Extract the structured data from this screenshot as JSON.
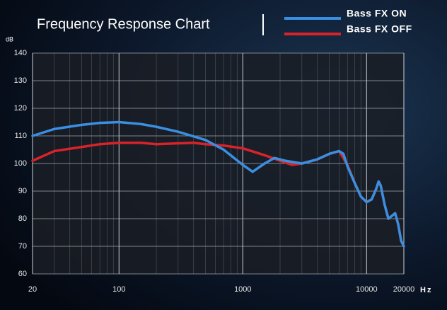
{
  "chart_data": {
    "type": "line",
    "title": "Frequency Response Chart",
    "y_label": "dB",
    "x_label": "Hz",
    "log_x": true,
    "grid": true,
    "legend": "top-right",
    "xlim": [
      20,
      20000
    ],
    "ylim": [
      60,
      140
    ],
    "xticks": [
      20,
      100,
      1000,
      10000,
      20000
    ],
    "xminorticks": [
      30,
      40,
      50,
      60,
      70,
      80,
      90,
      200,
      300,
      400,
      500,
      600,
      700,
      800,
      900,
      2000,
      3000,
      4000,
      5000,
      6000,
      7000,
      8000,
      9000
    ],
    "yticks": [
      60,
      70,
      80,
      90,
      100,
      110,
      120,
      130,
      140
    ],
    "series": [
      {
        "name": "Bass FX ON",
        "color": "#3a8fe0",
        "x": [
          20,
          30,
          50,
          70,
          100,
          150,
          200,
          300,
          500,
          700,
          1000,
          1200,
          1500,
          1800,
          2200,
          3000,
          4000,
          5000,
          6000,
          6500,
          7000,
          8000,
          9000,
          10000,
          11000,
          12000,
          12500,
          13000,
          14000,
          15000,
          16000,
          17000,
          18000,
          19000,
          20000
        ],
        "values": [
          110,
          112.5,
          114,
          114.7,
          115,
          114.3,
          113.3,
          111.5,
          108.5,
          105,
          99.5,
          97,
          100,
          102,
          101,
          100,
          101.5,
          103.5,
          104.5,
          103.5,
          99,
          93,
          88,
          86,
          87,
          91,
          93.5,
          92,
          85,
          80,
          81,
          82,
          78,
          72,
          70
        ]
      },
      {
        "name": "Bass FX OFF",
        "color": "#d8232a",
        "x": [
          20,
          30,
          50,
          70,
          100,
          150,
          200,
          300,
          400,
          500,
          700,
          1000,
          1500,
          2000,
          2500,
          3000,
          4000,
          5000,
          6000,
          7000,
          8000,
          9000,
          10000,
          11000,
          12000,
          12500,
          13000,
          14000,
          15000,
          16000,
          17000,
          18000,
          19000,
          20000
        ],
        "values": [
          101,
          104.5,
          106,
          107,
          107.5,
          107.5,
          107,
          107.3,
          107.5,
          107,
          106.5,
          105.5,
          103,
          101,
          99.5,
          100,
          101.5,
          103.5,
          104.5,
          99.5,
          93,
          88,
          86,
          87,
          91,
          93.5,
          92,
          85,
          80,
          81,
          82,
          78,
          72,
          70
        ]
      }
    ]
  }
}
